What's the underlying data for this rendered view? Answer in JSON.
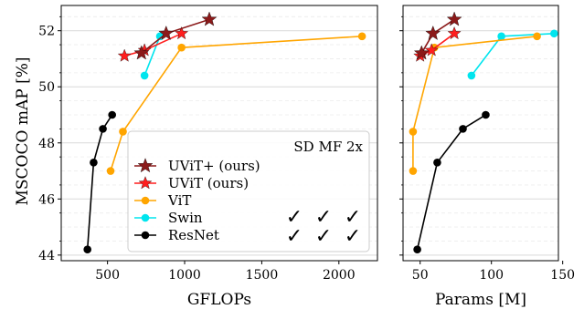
{
  "chart_data": [
    {
      "type": "line",
      "xlabel": "GFLOPs",
      "ylabel": "MSCOCO mAP [%]",
      "xlim": [
        200,
        2250
      ],
      "ylim": [
        43.8,
        52.9
      ],
      "xticks": [
        500,
        1000,
        1500,
        2000
      ],
      "yticks": [
        44,
        46,
        48,
        50,
        52
      ],
      "grid": true,
      "legend": {
        "placement": "lower-right",
        "title": "SD MF 2x",
        "checkmarks": [
          [
            "✓",
            "✓",
            "✓"
          ],
          [
            "✓",
            "✓",
            "✓"
          ]
        ]
      },
      "series": [
        {
          "name": "UViT+ (ours)",
          "color": "#8b1a1a",
          "marker": "star-large",
          "points": [
            [
              720,
              51.2
            ],
            [
              880,
              51.9
            ],
            [
              1160,
              52.4
            ]
          ]
        },
        {
          "name": "UViT (ours)",
          "color": "#ff1f1f",
          "marker": "star",
          "points": [
            [
              610,
              51.1
            ],
            [
              740,
              51.3
            ],
            [
              980,
              51.9
            ]
          ]
        },
        {
          "name": "ViT",
          "color": "#ffa500",
          "marker": "circle",
          "points": [
            [
              520,
              47.0
            ],
            [
              600,
              48.4
            ],
            [
              980,
              51.4
            ],
            [
              2150,
              51.8
            ]
          ]
        },
        {
          "name": "Swin",
          "color": "#00e5ee",
          "marker": "circle",
          "points": [
            [
              740,
              50.4
            ],
            [
              840,
              51.8
            ]
          ]
        },
        {
          "name": "ResNet",
          "color": "#000000",
          "marker": "circle",
          "points": [
            [
              370,
              44.2
            ],
            [
              410,
              47.3
            ],
            [
              470,
              48.5
            ],
            [
              530,
              49.0
            ]
          ]
        }
      ]
    },
    {
      "type": "line",
      "xlabel": "Params [M]",
      "ylabel": "",
      "xlim": [
        38,
        147
      ],
      "ylim": [
        43.8,
        52.9
      ],
      "xticks": [
        50,
        100,
        150
      ],
      "yticks": [
        44,
        46,
        48,
        50,
        52
      ],
      "grid": true,
      "series": [
        {
          "name": "UViT+ (ours)",
          "color": "#8b1a1a",
          "marker": "star-large",
          "points": [
            [
              51,
              51.2
            ],
            [
              59,
              51.9
            ],
            [
              74,
              52.4
            ]
          ]
        },
        {
          "name": "UViT (ours)",
          "color": "#ff1f1f",
          "marker": "star",
          "points": [
            [
              50,
              51.1
            ],
            [
              58,
              51.3
            ],
            [
              74,
              51.9
            ]
          ]
        },
        {
          "name": "ViT",
          "color": "#ffa500",
          "marker": "circle",
          "points": [
            [
              45,
              47.0
            ],
            [
              45,
              48.4
            ],
            [
              60,
              51.4
            ],
            [
              132,
              51.8
            ]
          ]
        },
        {
          "name": "Swin",
          "color": "#00e5ee",
          "marker": "circle",
          "points": [
            [
              86,
              50.4
            ],
            [
              107,
              51.8
            ],
            [
              144,
              51.9
            ]
          ]
        },
        {
          "name": "ResNet",
          "color": "#000000",
          "marker": "circle",
          "points": [
            [
              48,
              44.2
            ],
            [
              62,
              47.3
            ],
            [
              80,
              48.5
            ],
            [
              96,
              49.0
            ]
          ]
        }
      ]
    }
  ]
}
